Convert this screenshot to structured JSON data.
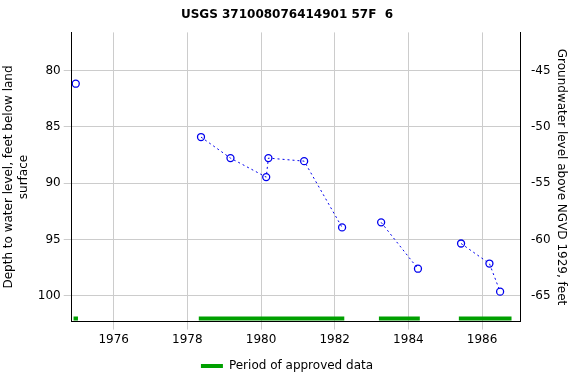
{
  "chart_data": {
    "type": "line",
    "title": "USGS 371008076414901 57F  6",
    "y_label": [
      "Depth to water level, feet below land",
      "surface"
    ],
    "y2_label": "Groundwater level above NGVD 1929, feet",
    "x": [
      1974.97,
      null,
      1978.37,
      1979.17,
      1980.14,
      1980.2,
      1981.17,
      1982.2,
      null,
      1983.26,
      1984.26,
      null,
      1985.43,
      1986.2,
      1986.49
    ],
    "values": [
      81.16,
      null,
      85.9,
      87.77,
      89.46,
      87.77,
      88.04,
      93.93,
      null,
      93.48,
      97.6,
      null,
      95.36,
      97.14,
      99.64
    ],
    "color": "#0000ee",
    "marker": "circle",
    "line_style": "dotted",
    "xlim": [
      1974.86,
      1987.03
    ],
    "xticks": [
      1976,
      1978,
      1980,
      1982,
      1984,
      1986
    ],
    "ylim": [
      102.3,
      76.6
    ],
    "yticks": [
      80,
      85,
      90,
      95,
      100
    ],
    "y2lim": [
      -67.3,
      -41.6
    ],
    "y2ticks": [
      -45,
      -50,
      -55,
      -60,
      -65
    ],
    "grid": true,
    "legend": "bottom",
    "approved_data": {
      "name": "Period of approved data",
      "color": "#00a000",
      "ranges": [
        [
          1974.91,
          1975.03
        ],
        [
          1978.31,
          1982.26
        ],
        [
          1983.2,
          1984.31
        ],
        [
          1985.37,
          1986.8
        ]
      ]
    }
  }
}
